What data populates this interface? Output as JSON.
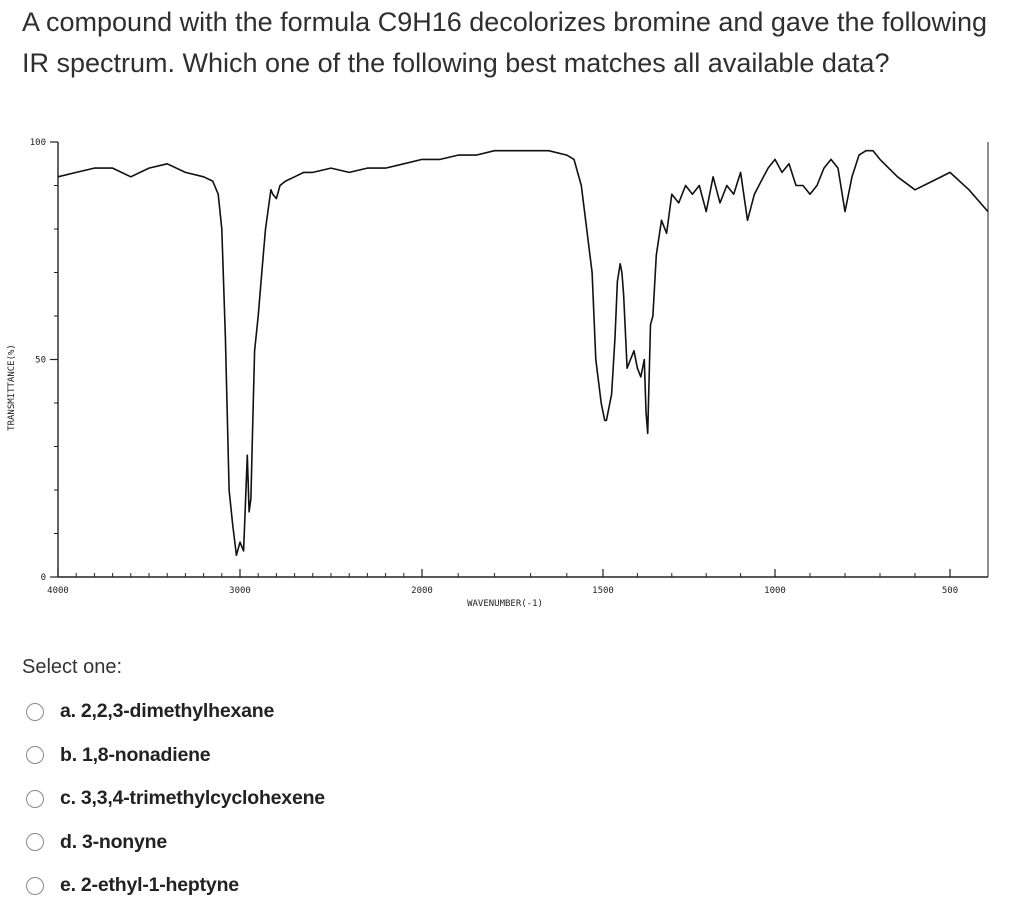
{
  "question": {
    "text": "A compound with the formula C9H16 decolorizes bromine and gave the following IR spectrum.  Which one of the following best matches all available data?"
  },
  "chart_data": {
    "type": "line",
    "xlabel": "WAVENUMBER(-1)",
    "ylabel": "TRANSMITTANCE(%)",
    "xlim": [
      4000,
      400
    ],
    "ylim": [
      0,
      100
    ],
    "x_ticks": [
      "4000",
      "3000",
      "2000",
      "1500",
      "1000",
      "500"
    ],
    "y_ticks": [
      "100",
      "50",
      "0"
    ],
    "series": [
      {
        "x": [
          4000,
          3900,
          3800,
          3700,
          3600,
          3500,
          3400,
          3300,
          3200,
          3150,
          3120,
          3100,
          3080,
          3060,
          3040,
          3020,
          3000,
          2980,
          2960,
          2950,
          2940,
          2930,
          2920,
          2900,
          2880,
          2860,
          2840,
          2830,
          2820,
          2800,
          2780,
          2750,
          2700,
          2650,
          2600,
          2500,
          2400,
          2300,
          2200,
          2100,
          2000,
          1950,
          1900,
          1850,
          1800,
          1750,
          1700,
          1650,
          1600,
          1580,
          1560,
          1545,
          1530,
          1520,
          1505,
          1495,
          1490,
          1475,
          1465,
          1458,
          1450,
          1445,
          1440,
          1430,
          1420,
          1410,
          1400,
          1390,
          1380,
          1375,
          1370,
          1362,
          1355,
          1345,
          1330,
          1315,
          1300,
          1280,
          1260,
          1240,
          1220,
          1200,
          1180,
          1160,
          1140,
          1120,
          1100,
          1080,
          1060,
          1040,
          1020,
          1000,
          980,
          960,
          940,
          920,
          900,
          880,
          860,
          840,
          820,
          800,
          780,
          760,
          740,
          720,
          700,
          650,
          600,
          550,
          500,
          450,
          400
        ],
        "y": [
          92,
          93,
          94,
          94,
          92,
          94,
          95,
          93,
          92,
          91,
          88,
          80,
          55,
          20,
          12,
          5,
          8,
          6,
          28,
          15,
          18,
          35,
          52,
          60,
          70,
          80,
          86,
          89,
          88,
          87,
          90,
          91,
          92,
          93,
          93,
          94,
          93,
          94,
          94,
          95,
          96,
          96,
          97,
          97,
          98,
          98,
          98,
          98,
          97,
          96,
          90,
          80,
          70,
          50,
          40,
          36,
          36,
          42,
          55,
          68,
          72,
          70,
          65,
          48,
          50,
          52,
          48,
          46,
          50,
          38,
          33,
          58,
          60,
          74,
          82,
          79,
          88,
          86,
          90,
          88,
          90,
          84,
          92,
          86,
          90,
          88,
          93,
          82,
          88,
          91,
          94,
          96,
          93,
          95,
          90,
          90,
          88,
          90,
          94,
          96,
          94,
          84,
          92,
          97,
          98,
          98,
          96,
          92,
          89,
          91,
          93,
          89,
          84
        ]
      }
    ]
  },
  "select_label": "Select one:",
  "options": [
    {
      "letter": "a.",
      "label": "2,2,3-dimethylhexane"
    },
    {
      "letter": "b.",
      "label": "1,8-nonadiene"
    },
    {
      "letter": "c.",
      "label": "3,3,4-trimethylcyclohexene"
    },
    {
      "letter": "d.",
      "label": "3-nonyne"
    },
    {
      "letter": "e.",
      "label": "2-ethyl-1-heptyne"
    }
  ]
}
